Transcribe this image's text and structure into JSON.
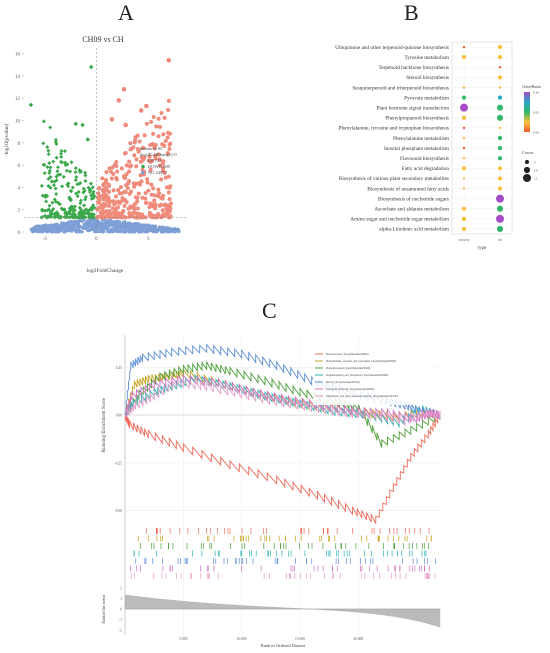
{
  "panels": {
    "a": "A",
    "b": "B",
    "c": "C"
  },
  "chart_data": [
    {
      "type": "scatter",
      "title": "CH09 vs CH",
      "xlabel": "log2FoldChange",
      "ylabel": "-log10(pvalue)",
      "xlim": [
        -4.2,
        5.2
      ],
      "ylim": [
        0,
        16.5
      ],
      "xticks": [
        "-3",
        "0",
        "3"
      ],
      "yticks": [
        "0",
        "2",
        "4",
        "6",
        "8",
        "10",
        "12",
        "14",
        "16"
      ],
      "legend_title": "pvalue<0.05\n|log2FoldChange|>0",
      "legend_title_lines": [
        "pvalue<0.05",
        "|log2FoldChange|>0"
      ],
      "legend_position": "center-right",
      "groups": [
        {
          "name": "UP 743",
          "color": "#f08a7a",
          "count": 743
        },
        {
          "name": "DOWN 509",
          "color": "#3aa84a",
          "count": 509
        },
        {
          "name": "NO 23973",
          "color": "#7e9fd6",
          "count": 23973
        }
      ],
      "highlight_points": [
        {
          "x": -3.8,
          "y": 11.4,
          "group": "DOWN 509"
        },
        {
          "x": -0.3,
          "y": 14.8,
          "group": "DOWN 509"
        },
        {
          "x": -1.2,
          "y": 9.7,
          "group": "DOWN 509"
        },
        {
          "x": -0.8,
          "y": 9.6,
          "group": "DOWN 509"
        },
        {
          "x": -0.5,
          "y": 8.3,
          "group": "DOWN 509"
        },
        {
          "x": 4.2,
          "y": 15.4,
          "group": "UP 743"
        },
        {
          "x": 1.6,
          "y": 12.8,
          "group": "UP 743"
        },
        {
          "x": 1.3,
          "y": 11.8,
          "group": "UP 743"
        },
        {
          "x": 2.9,
          "y": 11.3,
          "group": "UP 743"
        },
        {
          "x": 2.6,
          "y": 10.9,
          "group": "UP 743"
        },
        {
          "x": 0.9,
          "y": 10.1,
          "group": "UP 743"
        },
        {
          "x": 1.7,
          "y": 9.6,
          "group": "UP 743"
        }
      ]
    },
    {
      "type": "scatter",
      "subtype": "dotplot",
      "xlabel": "type",
      "categories": [
        "DOWN",
        "UP"
      ],
      "pathways": [
        "Ubiquinone and other terpenoid-quinone biosynthesis",
        "Tyrosine metabolism",
        "Terpenoid backbone biosynthesis",
        "Steroid biosynthesis",
        "Sesquiterpenoid and triterpenoid biosynthesis",
        "Pyruvate metabolism",
        "Plant hormone signal transduction",
        "Phenylpropanoid biosynthesis",
        "Phenylalanine, tyrosine and tryptophan biosynthesis",
        "Phenylalanine metabolism",
        "Inositol phosphate metabolism",
        "Flavonoid biosynthesis",
        "Fatty acid degradation",
        "Biosynthesis of various plant secondary metabolites",
        "Biosynthesis of unsaturated fatty acids",
        "Biosynthesis of nucleotide sugars",
        "Ascorbate and aldarate metabolism",
        "Amino sugar and nucleotide sugar metabolism",
        "alpha-Linolenic acid metabolism"
      ],
      "points": [
        {
          "p": 0,
          "c": "DOWN",
          "ratio": 0.01,
          "count": 1
        },
        {
          "p": 0,
          "c": "UP",
          "ratio": 0.03,
          "count": 5
        },
        {
          "p": 1,
          "c": "DOWN",
          "ratio": 0.02,
          "count": 5
        },
        {
          "p": 1,
          "c": "UP",
          "ratio": 0.02,
          "count": 5
        },
        {
          "p": 2,
          "c": "UP",
          "ratio": 0.01,
          "count": 1
        },
        {
          "p": 3,
          "c": "UP",
          "ratio": 0.03,
          "count": 5
        },
        {
          "p": 4,
          "c": "DOWN",
          "ratio": 0.02,
          "count": 1
        },
        {
          "p": 4,
          "c": "UP",
          "ratio": 0.03,
          "count": 1
        },
        {
          "p": 5,
          "c": "DOWN",
          "ratio": 0.06,
          "count": 5
        },
        {
          "p": 5,
          "c": "UP",
          "ratio": 0.08,
          "count": 5
        },
        {
          "p": 6,
          "c": "DOWN",
          "ratio": 0.09,
          "count": 15
        },
        {
          "p": 6,
          "c": "UP",
          "ratio": 0.05,
          "count": 10
        },
        {
          "p": 7,
          "c": "DOWN",
          "ratio": 0.03,
          "count": 5
        },
        {
          "p": 7,
          "c": "UP",
          "ratio": 0.06,
          "count": 10
        },
        {
          "p": 8,
          "c": "DOWN",
          "ratio": 0.01,
          "count": 1
        },
        {
          "p": 8,
          "c": "UP",
          "ratio": 0.02,
          "count": 1
        },
        {
          "p": 9,
          "c": "DOWN",
          "ratio": 0.02,
          "count": 1
        },
        {
          "p": 9,
          "c": "UP",
          "ratio": 0.05,
          "count": 5
        },
        {
          "p": 10,
          "c": "DOWN",
          "ratio": 0.01,
          "count": 1
        },
        {
          "p": 10,
          "c": "UP",
          "ratio": 0.06,
          "count": 5
        },
        {
          "p": 11,
          "c": "DOWN",
          "ratio": 0.02,
          "count": 1
        },
        {
          "p": 11,
          "c": "UP",
          "ratio": 0.06,
          "count": 5
        },
        {
          "p": 12,
          "c": "DOWN",
          "ratio": 0.03,
          "count": 5
        },
        {
          "p": 12,
          "c": "UP",
          "ratio": 0.02,
          "count": 5
        },
        {
          "p": 13,
          "c": "DOWN",
          "ratio": 0.03,
          "count": 1
        },
        {
          "p": 13,
          "c": "UP",
          "ratio": 0.03,
          "count": 5
        },
        {
          "p": 14,
          "c": "DOWN",
          "ratio": 0.02,
          "count": 1
        },
        {
          "p": 14,
          "c": "UP",
          "ratio": 0.03,
          "count": 5
        },
        {
          "p": 15,
          "c": "UP",
          "ratio": 0.09,
          "count": 15
        },
        {
          "p": 16,
          "c": "DOWN",
          "ratio": 0.03,
          "count": 5
        },
        {
          "p": 16,
          "c": "UP",
          "ratio": 0.05,
          "count": 10
        },
        {
          "p": 17,
          "c": "DOWN",
          "ratio": 0.03,
          "count": 5
        },
        {
          "p": 17,
          "c": "UP",
          "ratio": 0.09,
          "count": 15
        },
        {
          "p": 18,
          "c": "DOWN",
          "ratio": 0.03,
          "count": 5
        },
        {
          "p": 18,
          "c": "UP",
          "ratio": 0.04,
          "count": 10
        }
      ],
      "color_legend_title": "GeneRatio",
      "color_scale": [
        "#f0582f",
        "#f7c13a",
        "#33b76a",
        "#2aa6c8",
        "#a44bc6"
      ],
      "color_ticks": [
        "0.00",
        "0.05",
        "0.10"
      ],
      "size_legend_title": "Count",
      "size_ticks": [
        "5",
        "10",
        "15"
      ],
      "legend_position": "right"
    },
    {
      "type": "line",
      "xlabel": "Rank in Ordered Dataset",
      "ylabel": "Running Enrichment Score",
      "ylabel_bottom": "Ranked list metric",
      "xlim": [
        0,
        27000
      ],
      "ylim": [
        -0.55,
        0.42
      ],
      "xticks": [
        "5,000",
        "10,000",
        "15,000",
        "20,000"
      ],
      "xtick_values": [
        5000,
        10000,
        15000,
        20000
      ],
      "yticks": [
        "0.25",
        "0.00",
        "-0.25",
        "-0.50"
      ],
      "ytick_values": [
        0.25,
        0.0,
        -0.25,
        -0.5
      ],
      "metric_yticks": [
        "2",
        "1",
        "0",
        "-1",
        "-2"
      ],
      "metric_ytick_values": [
        2,
        1,
        0,
        -1,
        -2
      ],
      "legend_position": "top-right",
      "series": [
        {
          "name": "Monoterpenoid_biosynthesis(ko00902)",
          "color": "#f26b5b",
          "x": [
            0,
            400,
            2000,
            5000,
            9000,
            13000,
            16500,
            19500,
            21500,
            23000,
            24500,
            26000,
            27000
          ],
          "y": [
            0.0,
            -0.05,
            -0.1,
            -0.17,
            -0.26,
            -0.34,
            -0.42,
            -0.5,
            -0.55,
            -0.38,
            -0.22,
            -0.1,
            0.0
          ]
        },
        {
          "name": "Phenylalanine,_tyrosine_and_tryptophan_biosynthesis(ko00400)",
          "color": "#c9a21c",
          "x": [
            0,
            800,
            2000,
            3500,
            5000,
            8000,
            11000,
            14000,
            17000,
            20000,
            23000,
            25500,
            27000
          ],
          "y": [
            0.0,
            0.16,
            0.19,
            0.2,
            0.22,
            0.17,
            0.12,
            0.07,
            0.04,
            0.02,
            -0.01,
            0.01,
            0.0
          ]
        },
        {
          "name": "Phenylpropanoid_biosynthesis(ko00940)",
          "color": "#4c9f3a",
          "x": [
            0,
            1200,
            3000,
            5000,
            7000,
            9000,
            12000,
            15000,
            18000,
            20000,
            22000,
            24500,
            27000
          ],
          "y": [
            0.0,
            0.11,
            0.2,
            0.24,
            0.26,
            0.23,
            0.18,
            0.12,
            0.07,
            0.04,
            -0.15,
            -0.08,
            0.0
          ]
        },
        {
          "name": "Sesquiterpenoid_and_triterpenoid_biosynthesis(ko00909)",
          "color": "#2ab3b3",
          "x": [
            0,
            700,
            2500,
            4000,
            6000,
            9000,
            12000,
            15000,
            18000,
            21000,
            23500,
            25500,
            27000
          ],
          "y": [
            0.0,
            0.06,
            0.12,
            0.15,
            0.19,
            0.15,
            0.1,
            0.06,
            0.02,
            0.0,
            -0.04,
            0.03,
            0.0
          ]
        },
        {
          "name": "Steroid_biosynthesis(ko00100)",
          "color": "#5d8fd8",
          "x": [
            0,
            500,
            1500,
            4000,
            7000,
            10000,
            13000,
            16000,
            19000,
            22000,
            24000,
            25500,
            27000
          ],
          "y": [
            0.0,
            0.26,
            0.3,
            0.33,
            0.35,
            0.32,
            0.26,
            0.18,
            0.12,
            0.08,
            0.05,
            0.02,
            0.0
          ]
        },
        {
          "name": "Terpenoid_backbone_biosynthesis(ko00900)",
          "color": "#d070c2",
          "x": [
            0,
            600,
            2500,
            5000,
            8000,
            11000,
            14000,
            17000,
            20000,
            22500,
            25000,
            26200,
            27000
          ],
          "y": [
            0.0,
            0.1,
            0.16,
            0.19,
            0.17,
            0.12,
            0.08,
            0.05,
            0.02,
            0.01,
            -0.02,
            0.01,
            0.0
          ]
        },
        {
          "name": "Ubiquinone_and_other_terpenoid-quinone_biosynthesis(ko00130)",
          "color": "#e69bc9",
          "x": [
            0,
            900,
            2500,
            4500,
            7000,
            10000,
            13000,
            16000,
            19000,
            21500,
            24000,
            25800,
            27000
          ],
          "y": [
            0.0,
            0.05,
            0.1,
            0.17,
            0.15,
            0.11,
            0.07,
            0.04,
            0.01,
            0.0,
            -0.03,
            0.01,
            0.0
          ]
        }
      ]
    }
  ]
}
